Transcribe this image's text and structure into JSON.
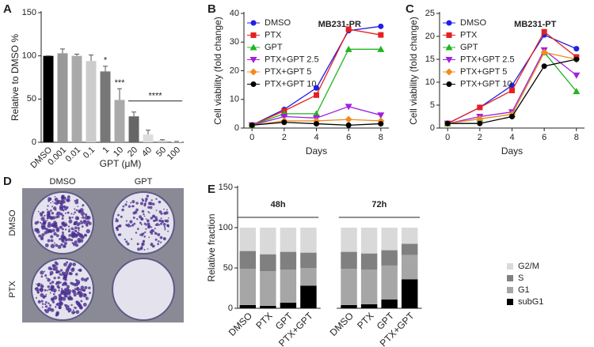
{
  "chart_data": [
    {
      "type": "bar",
      "panel_label": "A",
      "y_label": "Relative to DMSO %",
      "x_label": "GPT (μM)",
      "categories": [
        "DMSO",
        "0.001",
        "0.01",
        "0.1",
        "1",
        "10",
        "20",
        "40",
        "50",
        "100"
      ],
      "values": [
        100,
        103,
        100,
        94,
        82,
        49,
        30,
        9,
        2,
        0.5
      ],
      "errors": [
        0,
        5,
        2,
        7,
        6,
        13,
        5,
        5,
        1,
        0.5
      ],
      "colors": [
        "#000000",
        "#999999",
        "#aaaaaa",
        "#cccccc",
        "#777777",
        "#aaaaaa",
        "#666666",
        "#dddddd",
        "#cfcfcf",
        "#e0e0e0"
      ],
      "ylim": [
        0,
        150
      ],
      "yticks": [
        0,
        50,
        100,
        150
      ],
      "annotations": [
        {
          "text": "*",
          "x": "1"
        },
        {
          "text": "***",
          "x": "10"
        },
        {
          "text": "****",
          "x": [
            "20",
            "100"
          ]
        }
      ]
    },
    {
      "type": "line",
      "panel_label": "B",
      "title": "MB231-PR",
      "y_label": "Cell viability (fold change)",
      "x_label": "Days",
      "x": [
        0,
        2,
        4,
        6,
        8
      ],
      "xlim": [
        -0.5,
        8.5
      ],
      "xticks": [
        0,
        2,
        4,
        6,
        8
      ],
      "ylim": [
        0,
        40
      ],
      "yticks": [
        0,
        10,
        20,
        30,
        40
      ],
      "legend": "upper left",
      "series": [
        {
          "name": "DMSO",
          "color": "#1f1fe6",
          "marker": "circle",
          "values": [
            1,
            6.5,
            14,
            34,
            35.5
          ]
        },
        {
          "name": "PTX",
          "color": "#e61f1f",
          "marker": "square",
          "values": [
            1,
            6,
            11.5,
            34.5,
            32.5
          ]
        },
        {
          "name": "GPT",
          "color": "#22b422",
          "marker": "triangle-up",
          "values": [
            1,
            5,
            5,
            27.5,
            27.5
          ]
        },
        {
          "name": "PTX+GPT 2.5",
          "color": "#a020e0",
          "marker": "triangle-down",
          "values": [
            1,
            4,
            3.5,
            7.5,
            4.5
          ]
        },
        {
          "name": "PTX+GPT 5",
          "color": "#f08c1e",
          "marker": "diamond",
          "values": [
            1,
            2.5,
            2.5,
            3,
            2.5
          ]
        },
        {
          "name": "PTX+GPT 10",
          "color": "#000000",
          "marker": "circle",
          "values": [
            1,
            2,
            1.5,
            1,
            1.5
          ]
        }
      ]
    },
    {
      "type": "line",
      "panel_label": "C",
      "title": "MB231-PT",
      "y_label": "Cell viability (fold change)",
      "x_label": "Days",
      "x": [
        0,
        2,
        4,
        6,
        8
      ],
      "xlim": [
        -0.5,
        8.5
      ],
      "xticks": [
        0,
        2,
        4,
        6,
        8
      ],
      "ylim": [
        0,
        25
      ],
      "yticks": [
        0,
        5,
        10,
        15,
        20,
        25
      ],
      "legend": "upper left",
      "series": [
        {
          "name": "DMSO",
          "color": "#1f1fe6",
          "marker": "circle",
          "values": [
            1,
            4.5,
            9.3,
            20.3,
            17.3
          ]
        },
        {
          "name": "PTX",
          "color": "#e61f1f",
          "marker": "square",
          "values": [
            1,
            4.5,
            8.2,
            21,
            15.5
          ]
        },
        {
          "name": "GPT",
          "color": "#22b422",
          "marker": "triangle-up",
          "values": [
            1,
            2,
            3,
            16.5,
            8
          ]
        },
        {
          "name": "PTX+GPT 2.5",
          "color": "#a020e0",
          "marker": "triangle-down",
          "values": [
            1,
            2.5,
            3.5,
            17,
            11.5
          ]
        },
        {
          "name": "PTX+GPT 5",
          "color": "#f08c1e",
          "marker": "diamond",
          "values": [
            1,
            2,
            3,
            16.5,
            15
          ]
        },
        {
          "name": "PTX+GPT 10",
          "color": "#000000",
          "marker": "circle",
          "values": [
            1,
            1,
            2.5,
            13.5,
            15
          ]
        }
      ]
    },
    {
      "type": "image",
      "panel_label": "D",
      "column_labels": [
        "DMSO",
        "GPT"
      ],
      "row_labels": [
        "DMSO",
        "PTX"
      ]
    },
    {
      "type": "stacked_bar",
      "panel_label": "E",
      "y_label": "Relative fraction",
      "categories": [
        "DMSO",
        "PTX",
        "GPT",
        "PTX+GPT",
        "DMSO",
        "PTX",
        "GPT",
        "PTX+GPT"
      ],
      "group_labels": [
        "48h",
        "72h"
      ],
      "ylim": [
        0,
        150
      ],
      "yticks": [
        0,
        50,
        100,
        150
      ],
      "legend": "right",
      "series": [
        {
          "name": "subG1",
          "color": "#000000",
          "values": [
            4,
            3,
            7,
            28,
            4,
            5,
            11,
            36
          ]
        },
        {
          "name": "G1",
          "color": "#a6a6a6",
          "values": [
            45,
            43,
            41,
            22,
            45,
            43,
            42,
            30
          ]
        },
        {
          "name": "S",
          "color": "#808080",
          "values": [
            22,
            21,
            22,
            19,
            21,
            20,
            19,
            14
          ]
        },
        {
          "name": "G2/M",
          "color": "#d9d9d9",
          "values": [
            29,
            33,
            30,
            31,
            30,
            32,
            28,
            20
          ]
        }
      ]
    }
  ]
}
